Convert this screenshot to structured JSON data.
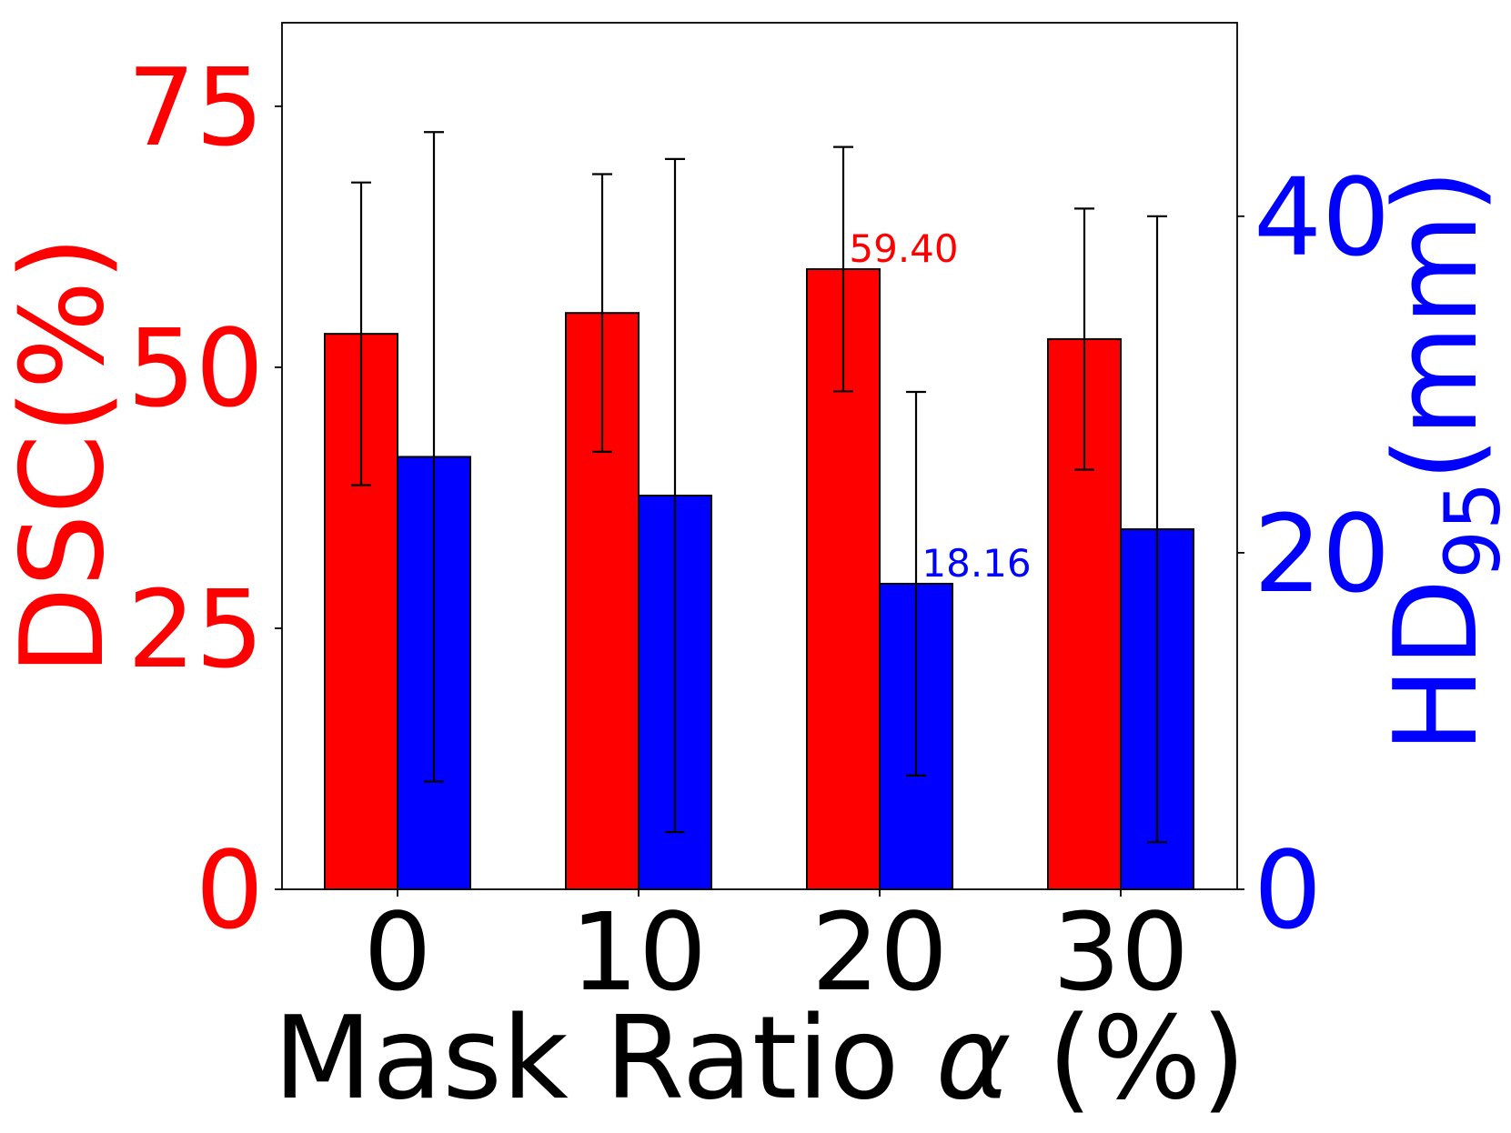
{
  "chart_data": {
    "type": "bar",
    "categories": [
      "0",
      "10",
      "20",
      "30"
    ],
    "xlabel": "Mask Ratio α (%)",
    "xlabel_parts": {
      "main": "Mask Ratio ",
      "symbol": "α",
      "suffix": " (%)"
    },
    "ylabel_left": "DSC(%)",
    "ylabel_right": "HD95(mm)",
    "ylabel_right_parts": {
      "main": "HD",
      "subscript": "95",
      "suffix": "(mm)"
    },
    "left_axis": {
      "ylim": [
        0,
        83
      ],
      "ticks": [
        0,
        25,
        50,
        75
      ],
      "color": "#ff0000"
    },
    "right_axis": {
      "ylim": [
        0,
        51.5
      ],
      "ticks": [
        0,
        20,
        40
      ],
      "color": "#0000ff"
    },
    "grid": false,
    "series": [
      {
        "name": "DSC(%)",
        "axis": "left",
        "color": "#ff0000",
        "values": [
          53.2,
          55.2,
          59.4,
          52.7
        ],
        "error": [
          14.5,
          13.3,
          11.7,
          12.5
        ]
      },
      {
        "name": "HD95(mm)",
        "axis": "right",
        "color": "#0000ff",
        "values": [
          25.7,
          23.4,
          18.16,
          21.4
        ],
        "error": [
          19.3,
          20.0,
          11.4,
          18.6
        ]
      }
    ],
    "annotations": [
      {
        "series": 0,
        "category": "20",
        "text": "59.40",
        "color": "#ff0000"
      },
      {
        "series": 1,
        "category": "20",
        "text": "18.16",
        "color": "#0000ff"
      }
    ]
  }
}
